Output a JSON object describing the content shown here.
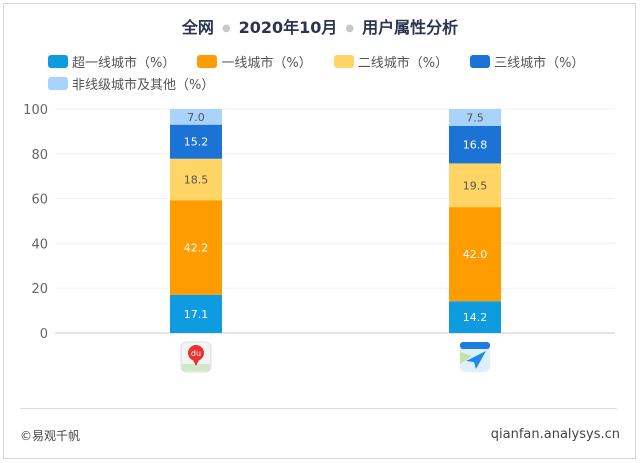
{
  "title_parts": [
    "全网",
    "2020年10月",
    "用户属性分析"
  ],
  "chart_data": {
    "type": "bar",
    "stacked": true,
    "categories": [
      "百度地图",
      "腾讯地图"
    ],
    "category_icons": [
      "baidu-map-icon",
      "tencent-map-icon"
    ],
    "series": [
      {
        "name": "超一线城市（%）",
        "color": "#0e9be0",
        "values": [
          17.1,
          14.2
        ]
      },
      {
        "name": "一线城市（%）",
        "color": "#ff9c00",
        "values": [
          42.2,
          42.0
        ]
      },
      {
        "name": "二线城市（%）",
        "color": "#ffd666",
        "values": [
          18.5,
          19.5
        ]
      },
      {
        "name": "三线城市（%）",
        "color": "#1c73d6",
        "values": [
          15.2,
          16.8
        ]
      },
      {
        "name": "非线级城市及其他（%）",
        "color": "#a8d4fb",
        "values": [
          7.0,
          7.5
        ]
      }
    ],
    "ylim": [
      0,
      100
    ],
    "yticks": [
      0,
      20,
      40,
      60,
      80,
      100
    ],
    "grid": true,
    "legend": "top"
  },
  "footer": {
    "copyright": "©易观千帆",
    "site": "qianfan.analysys.cn"
  }
}
